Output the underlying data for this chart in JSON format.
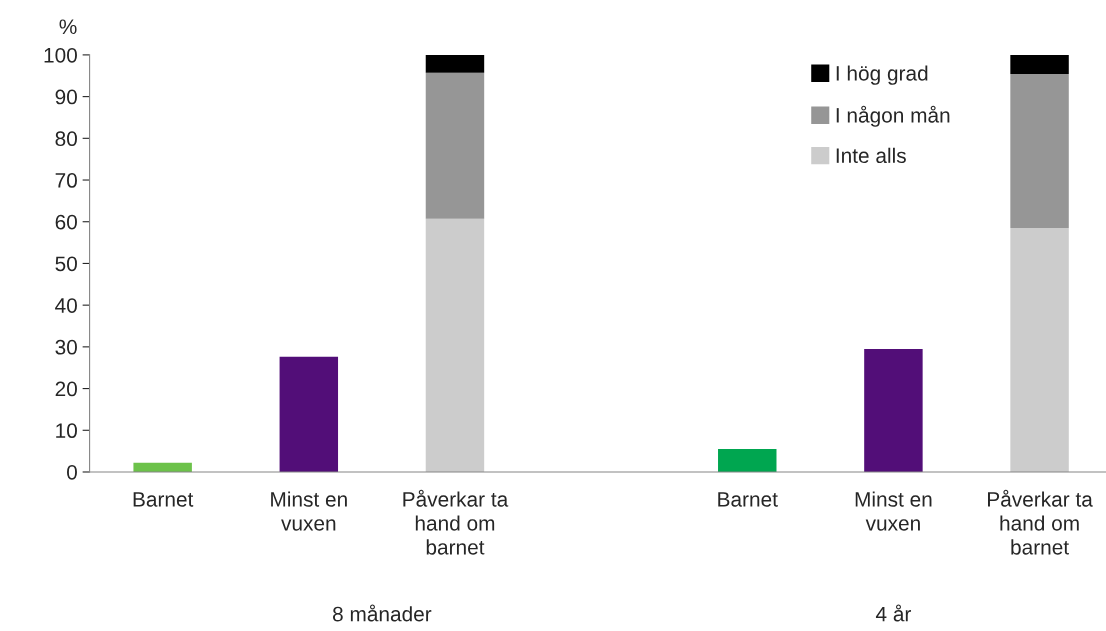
{
  "chart_data": {
    "type": "bar",
    "stacked": true,
    "ylabel": "%",
    "categories": [
      "Barnet",
      "Minst en\nvuxen",
      "Påverkar ta\nhand om\nbarnet",
      null,
      "Barnet",
      "Minst en\nvuxen",
      "Påverkar ta\nhand om\nbarnet"
    ],
    "series": [
      {
        "values": [
          2.2,
          27.6,
          null,
          null,
          5.5,
          29.5,
          null
        ],
        "colors": [
          "#6cc24a",
          "#520e78",
          null,
          null,
          "#00a650",
          "#520e78",
          null
        ]
      },
      {
        "name": "Inte alls",
        "color": "#cccccc",
        "values": [
          null,
          null,
          60.7,
          null,
          null,
          null,
          58.5
        ]
      },
      {
        "name": "I någon mån",
        "color": "#969696",
        "values": [
          null,
          null,
          35.0,
          null,
          null,
          null,
          36.9
        ]
      },
      {
        "name": "I hög grad",
        "color": "#000000",
        "values": [
          null,
          null,
          4.3,
          null,
          null,
          null,
          4.6
        ]
      }
    ],
    "ylim": [
      0,
      100
    ],
    "yticks": [
      0,
      10,
      20,
      30,
      40,
      50,
      60,
      70,
      80,
      90,
      100
    ],
    "annotations": [
      "8 månader",
      "4 år"
    ],
    "legend": "top right",
    "grid": false
  }
}
